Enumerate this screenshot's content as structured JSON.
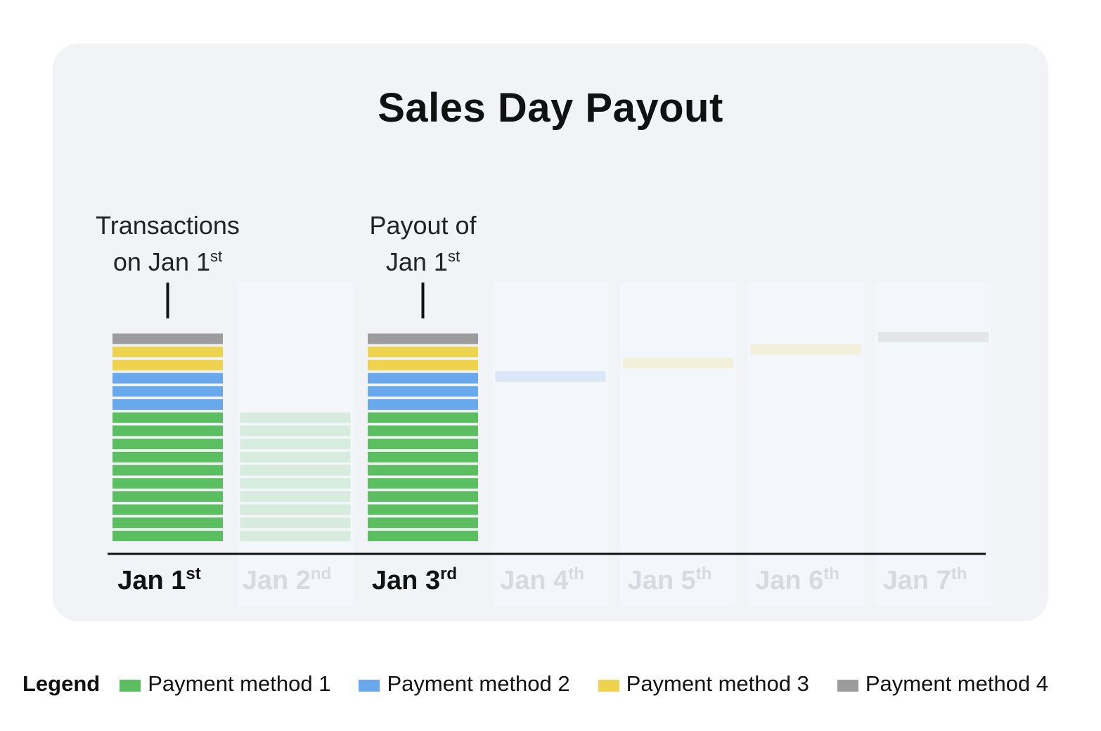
{
  "chart_data": {
    "type": "bar",
    "title": "Sales Day Payout",
    "categories": [
      {
        "main": "Jan 1",
        "suffix": "st",
        "highlighted": true
      },
      {
        "main": "Jan 2",
        "suffix": "nd",
        "highlighted": false
      },
      {
        "main": "Jan 3",
        "suffix": "rd",
        "highlighted": true
      },
      {
        "main": "Jan 4",
        "suffix": "th",
        "highlighted": false
      },
      {
        "main": "Jan 5",
        "suffix": "th",
        "highlighted": false
      },
      {
        "main": "Jan 6",
        "suffix": "th",
        "highlighted": false
      },
      {
        "main": "Jan 7",
        "suffix": "th",
        "highlighted": false
      }
    ],
    "series": [
      {
        "name": "Payment method 1",
        "color": "#5bbf61",
        "values": [
          10,
          10,
          10,
          0,
          0,
          0,
          0
        ]
      },
      {
        "name": "Payment method 2",
        "color": "#6aa8ee",
        "values": [
          3,
          0,
          3,
          1,
          0,
          0,
          0
        ]
      },
      {
        "name": "Payment method 3",
        "color": "#edd34e",
        "values": [
          2,
          0,
          2,
          0,
          1,
          1,
          0
        ]
      },
      {
        "name": "Payment method 4",
        "color": "#9c9c9c",
        "values": [
          1,
          0,
          1,
          0,
          0,
          0,
          1
        ]
      }
    ],
    "floating_bars": [
      false,
      false,
      false,
      true,
      true,
      true,
      true
    ],
    "annotations": [
      {
        "category_index": 0,
        "lines": [
          {
            "text": "Transactions"
          },
          {
            "text": "on Jan 1",
            "suffix": "st"
          }
        ]
      },
      {
        "category_index": 2,
        "lines": [
          {
            "text": "Payout of"
          },
          {
            "text": "Jan 1",
            "suffix": "st"
          }
        ]
      }
    ],
    "legend_title": "Legend",
    "legend_position": "bottom",
    "grid": false,
    "dimmed_opacity": 0.18,
    "column_background": "#f3f6fa"
  }
}
